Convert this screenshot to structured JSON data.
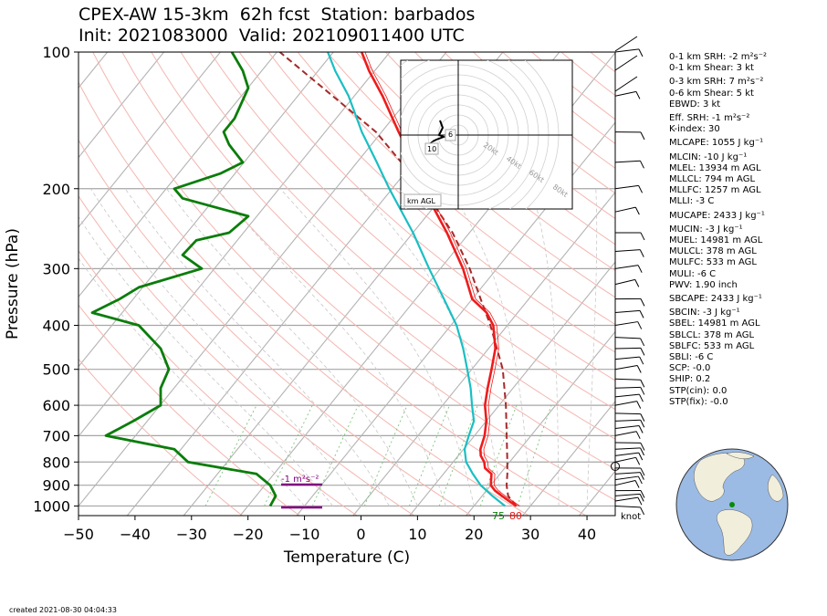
{
  "header": {
    "title_line1": "CPEX-AW 15-3km  62h fcst  Station: barbados",
    "title_line2": "Init: 2021083000  Valid: 2021090114​00 UTC"
  },
  "footer": {
    "created": "created 2021-08-30 04:04:33"
  },
  "indices": [
    "0-1 km SRH: -2 m²s⁻²",
    "0-1 km Shear: 3 kt",
    "0-3 km SRH: 7 m²s⁻²",
    "0-6 km Shear: 5 kt",
    "EBWD: 3 kt",
    "Eff. SRH: -1 m²s⁻²",
    "K-index: 30",
    "MLCAPE: 1055 J kg⁻¹",
    "MLCIN: -10 J kg⁻¹",
    "MLEL: 13934 m AGL",
    "MLLCL: 794 m AGL",
    "MLLFC: 1257 m AGL",
    "MLLI: -3 C",
    "MUCAPE: 2433 J kg⁻¹",
    "MUCIN: -3 J kg⁻¹",
    "MUEL: 14981 m AGL",
    "MULCL: 378 m AGL",
    "MULFC: 533 m AGL",
    "MULI: -6 C",
    "PWV: 1.90 inch",
    "SBCAPE: 2433 J kg⁻¹",
    "SBCIN: -3 J kg⁻¹",
    "SBEL: 14981 m AGL",
    "SBLCL: 378 m AGL",
    "SBLFC: 533 m AGL",
    "SBLI: -6 C",
    "SCP: -0.0",
    "SHIP: 0.2",
    "STP(cin): 0.0",
    "STP(fix): -0.0"
  ],
  "chart_data": {
    "type": "skew-t log-p sounding",
    "xlabel": "Temperature (C)",
    "ylabel": "Pressure (hPa)",
    "x_ticks": [
      -50,
      -40,
      -30,
      -20,
      -10,
      0,
      10,
      20,
      30,
      40
    ],
    "y_ticks": [
      100,
      200,
      300,
      400,
      500,
      600,
      700,
      800,
      900,
      1000
    ],
    "xlim": [
      -50,
      45
    ],
    "ylim": [
      1050,
      100
    ],
    "wind_unit_label": "knot",
    "surface_temperature_label": "80",
    "surface_dewpoint_label": "75",
    "helicity_bar_label": "-1 m²s⁻²",
    "temperature": [
      [
        1000,
        27.5
      ],
      [
        975,
        25.5
      ],
      [
        950,
        23.5
      ],
      [
        925,
        21.5
      ],
      [
        900,
        20.0
      ],
      [
        850,
        18.5
      ],
      [
        825,
        16.5
      ],
      [
        800,
        15.5
      ],
      [
        775,
        14.0
      ],
      [
        750,
        13.0
      ],
      [
        700,
        11.8
      ],
      [
        650,
        10.0
      ],
      [
        600,
        7.5
      ],
      [
        550,
        5.5
      ],
      [
        500,
        3.5
      ],
      [
        450,
        1.2
      ],
      [
        400,
        -2.5
      ],
      [
        375,
        -5.5
      ],
      [
        350,
        -10.0
      ],
      [
        300,
        -16.0
      ],
      [
        250,
        -24.0
      ],
      [
        200,
        -34.5
      ],
      [
        175,
        -40.0
      ],
      [
        150,
        -47.0
      ],
      [
        125,
        -55.0
      ],
      [
        110,
        -61.0
      ],
      [
        100,
        -65.0
      ]
    ],
    "dewpoint": [
      [
        1000,
        24.5
      ],
      [
        975,
        23.0
      ],
      [
        950,
        21.0
      ],
      [
        925,
        19.0
      ],
      [
        900,
        17.5
      ],
      [
        875,
        15.5
      ],
      [
        850,
        14.5
      ],
      [
        825,
        12.5
      ],
      [
        800,
        11.0
      ],
      [
        775,
        10.0
      ],
      [
        750,
        9.0
      ],
      [
        700,
        8.0
      ],
      [
        650,
        6.5
      ],
      [
        600,
        4.0
      ],
      [
        550,
        1.5
      ],
      [
        500,
        -2.0
      ],
      [
        450,
        -6.0
      ],
      [
        400,
        -11.0
      ],
      [
        350,
        -18.0
      ],
      [
        300,
        -25.5
      ],
      [
        250,
        -33.0
      ],
      [
        200,
        -44.0
      ],
      [
        175,
        -50.0
      ],
      [
        150,
        -56.0
      ],
      [
        125,
        -63.0
      ],
      [
        110,
        -69.0
      ],
      [
        100,
        -73.0
      ]
    ],
    "wetbulb": [
      [
        1000,
        25.5
      ],
      [
        950,
        21.8
      ],
      [
        900,
        18.2
      ],
      [
        850,
        15.2
      ],
      [
        800,
        12.3
      ],
      [
        750,
        10.2
      ],
      [
        700,
        9.0
      ],
      [
        650,
        7.8
      ],
      [
        600,
        5.2
      ],
      [
        550,
        2.5
      ],
      [
        500,
        -0.8
      ],
      [
        450,
        -4.5
      ],
      [
        400,
        -9.0
      ],
      [
        350,
        -15.0
      ],
      [
        300,
        -22.0
      ],
      [
        250,
        -30.0
      ],
      [
        200,
        -40.5
      ],
      [
        175,
        -46.5
      ],
      [
        150,
        -53.5
      ],
      [
        125,
        -61.0
      ],
      [
        110,
        -67.0
      ],
      [
        100,
        -71.0
      ]
    ],
    "parcel": [
      [
        1000,
        27.5
      ],
      [
        950,
        24.6
      ],
      [
        900,
        22.8
      ],
      [
        850,
        21.3
      ],
      [
        800,
        19.6
      ],
      [
        700,
        15.7
      ],
      [
        600,
        11.2
      ],
      [
        500,
        5.5
      ],
      [
        400,
        -3.0
      ],
      [
        350,
        -8.5
      ],
      [
        300,
        -14.8
      ],
      [
        250,
        -23.0
      ],
      [
        200,
        -34.5
      ],
      [
        150,
        -51.0
      ],
      [
        100,
        -79.5
      ]
    ],
    "rh": [
      [
        1000,
        0.8
      ],
      [
        950,
        0.82
      ],
      [
        900,
        0.8
      ],
      [
        850,
        0.75
      ],
      [
        800,
        0.5
      ],
      [
        750,
        0.45
      ],
      [
        700,
        0.2
      ],
      [
        650,
        0.3
      ],
      [
        600,
        0.4
      ],
      [
        550,
        0.4
      ],
      [
        500,
        0.43
      ],
      [
        450,
        0.4
      ],
      [
        400,
        0.32
      ],
      [
        375,
        0.15
      ],
      [
        350,
        0.25
      ],
      [
        330,
        0.32
      ],
      [
        300,
        0.55
      ],
      [
        280,
        0.48
      ],
      [
        260,
        0.53
      ],
      [
        250,
        0.65
      ],
      [
        230,
        0.72
      ],
      [
        210,
        0.48
      ],
      [
        200,
        0.45
      ],
      [
        185,
        0.62
      ],
      [
        175,
        0.7
      ],
      [
        160,
        0.65
      ],
      [
        150,
        0.63
      ],
      [
        140,
        0.67
      ],
      [
        120,
        0.72
      ],
      [
        110,
        0.7
      ],
      [
        100,
        0.66
      ]
    ],
    "hodograph": {
      "ring_labels": [
        "20kt",
        "40kt",
        "60kt",
        "80kt"
      ],
      "height_labels": [
        "6",
        "10"
      ],
      "legend": "km AGL"
    }
  }
}
